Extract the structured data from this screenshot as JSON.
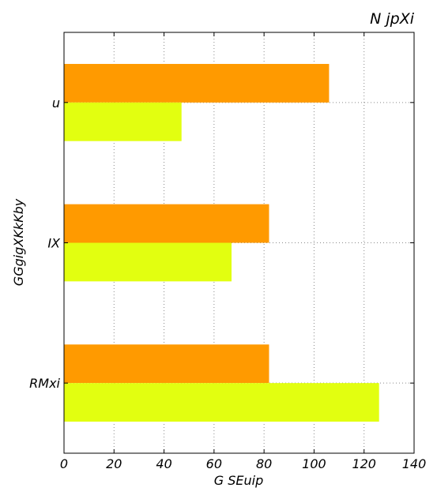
{
  "chart_data": {
    "type": "bar",
    "orientation": "horizontal",
    "title": "N jpXi",
    "xlabel": "G SEuip",
    "ylabel": "GGgigXKkKby",
    "categories": [
      "u",
      "IX",
      "RMxi"
    ],
    "series": [
      {
        "color": "#ff9a00",
        "values": [
          106,
          82,
          82
        ]
      },
      {
        "color": "#e2ff10",
        "values": [
          47,
          67,
          126
        ]
      }
    ],
    "xlim": [
      0,
      140
    ],
    "xticks": [
      0,
      20,
      40,
      60,
      80,
      100,
      120,
      140
    ],
    "xtick_labels": [
      "0",
      "20",
      "40",
      "60",
      "80",
      "100",
      "120",
      "140"
    ],
    "grid": true,
    "legend": "none"
  }
}
